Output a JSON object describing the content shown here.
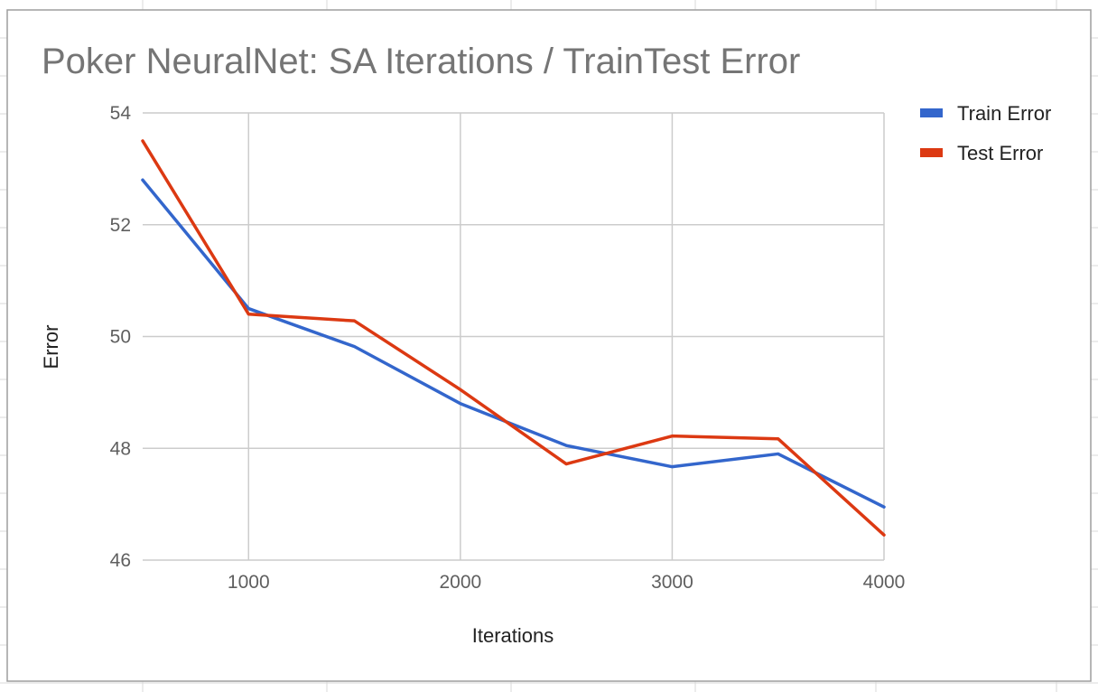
{
  "chart_data": {
    "type": "line",
    "title": "Poker NeuralNet:  SA Iterations / TrainTest Error",
    "xlabel": "Iterations",
    "ylabel": "Error",
    "x": [
      500,
      1000,
      1500,
      2000,
      2500,
      3000,
      3500,
      4000
    ],
    "xlim": [
      500,
      4000
    ],
    "ylim": [
      46,
      54
    ],
    "x_ticks": [
      1000,
      2000,
      3000,
      4000
    ],
    "y_ticks": [
      46,
      48,
      50,
      52,
      54
    ],
    "grid": true,
    "legend_position": "right",
    "series": [
      {
        "name": "Train Error",
        "color": "#3366cc",
        "values": [
          52.8,
          50.5,
          49.82,
          48.8,
          48.05,
          47.67,
          47.9,
          46.95
        ]
      },
      {
        "name": "Test Error",
        "color": "#dc3912",
        "values": [
          53.5,
          50.4,
          50.28,
          49.05,
          47.72,
          48.22,
          48.17,
          46.45
        ]
      }
    ]
  }
}
